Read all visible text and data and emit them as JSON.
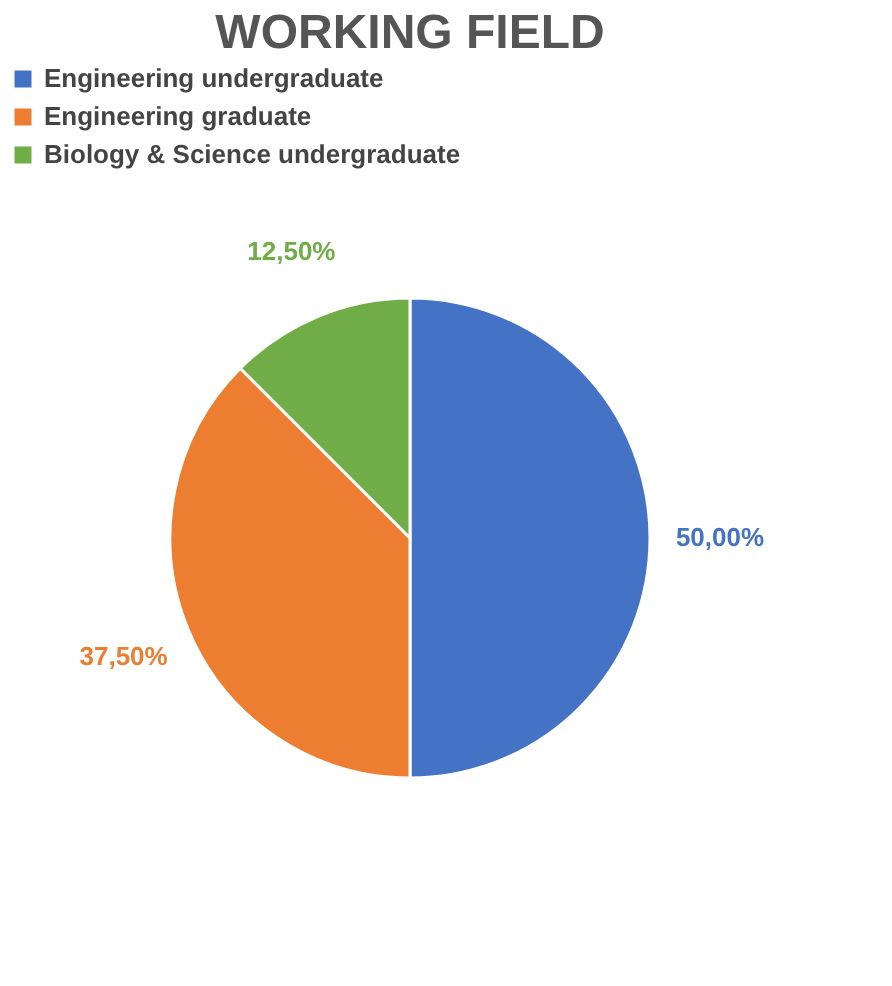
{
  "chart_data": {
    "type": "pie",
    "title": "WORKING FIELD",
    "categories": [
      "Engineering undergraduate",
      "Engineering graduate",
      "Biology & Science undergraduate"
    ],
    "values": [
      50,
      37.5,
      12.5
    ],
    "colors": [
      "#4472c4",
      "#ed7d31",
      "#70ad47"
    ],
    "value_labels": [
      "50,00%",
      "37,50%",
      "12,50%"
    ],
    "legend": "top"
  }
}
